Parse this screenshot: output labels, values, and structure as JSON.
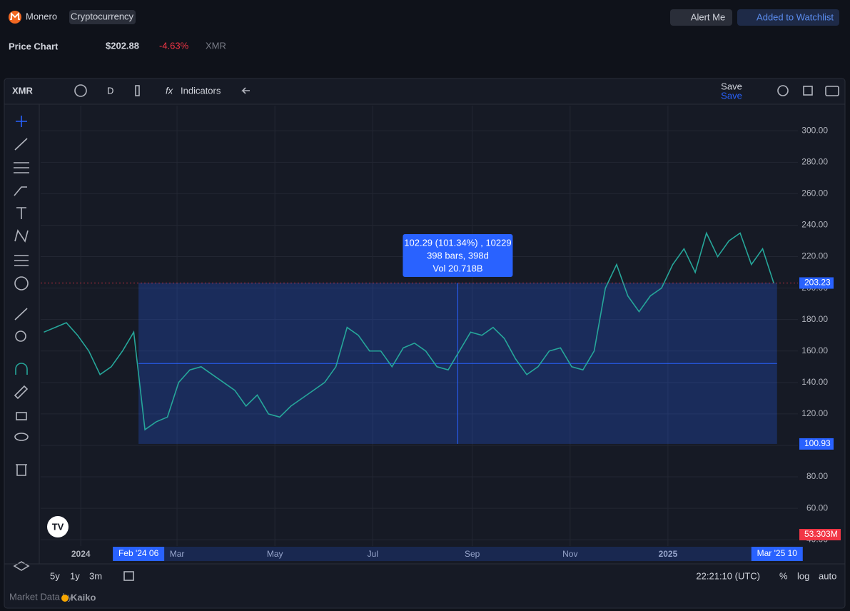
{
  "header": {
    "brand": "Monero",
    "badge": "Cryptocurrency",
    "alert": "Alert Me",
    "watchlist": "Added to Watchlist",
    "title": "Price Chart",
    "price": "$202.88",
    "change": "-4.63%",
    "symbol": "XMR"
  },
  "toolbar": {
    "symbol": "XMR",
    "interval": "D",
    "indicators": "Indicators",
    "save": "Save",
    "save_sub": "Save"
  },
  "chart_data": {
    "type": "line",
    "x": [
      "2023-12-09",
      "2023-12-16",
      "2023-12-23",
      "2023-12-30",
      "2024-01-06",
      "2024-01-13",
      "2024-01-20",
      "2024-01-27",
      "2024-02-03",
      "2024-02-10",
      "2024-02-17",
      "2024-02-24",
      "2024-03-02",
      "2024-03-09",
      "2024-03-16",
      "2024-03-23",
      "2024-03-30",
      "2024-04-06",
      "2024-04-13",
      "2024-04-20",
      "2024-04-27",
      "2024-05-04",
      "2024-05-11",
      "2024-05-18",
      "2024-05-25",
      "2024-06-01",
      "2024-06-08",
      "2024-06-15",
      "2024-06-22",
      "2024-06-29",
      "2024-07-06",
      "2024-07-13",
      "2024-07-20",
      "2024-07-27",
      "2024-08-03",
      "2024-08-10",
      "2024-08-17",
      "2024-08-24",
      "2024-08-31",
      "2024-09-07",
      "2024-09-14",
      "2024-09-21",
      "2024-09-28",
      "2024-10-05",
      "2024-10-12",
      "2024-10-19",
      "2024-10-26",
      "2024-11-02",
      "2024-11-09",
      "2024-11-16",
      "2024-11-23",
      "2024-11-30",
      "2024-12-07",
      "2024-12-14",
      "2024-12-21",
      "2024-12-28",
      "2025-01-04",
      "2025-01-11",
      "2025-01-18",
      "2025-01-25",
      "2025-02-01",
      "2025-02-08",
      "2025-02-15",
      "2025-02-22",
      "2025-03-01",
      "2025-03-08"
    ],
    "values": [
      172,
      175,
      178,
      170,
      160,
      145,
      150,
      160,
      172,
      110,
      115,
      118,
      140,
      148,
      150,
      145,
      140,
      135,
      125,
      132,
      120,
      118,
      125,
      130,
      135,
      140,
      150,
      175,
      170,
      160,
      160,
      150,
      162,
      165,
      160,
      150,
      148,
      160,
      172,
      170,
      175,
      168,
      155,
      145,
      150,
      160,
      162,
      150,
      148,
      160,
      200,
      215,
      195,
      185,
      195,
      200,
      215,
      225,
      210,
      235,
      220,
      230,
      235,
      215,
      225,
      203
    ],
    "color": "#26a69a",
    "xlim": [
      "2023-12-07",
      "2025-03-23"
    ],
    "xticks": [
      {
        "value": "2024-01-01",
        "label": "2024"
      },
      {
        "value": "2024-03-01",
        "label": "Mar"
      },
      {
        "value": "2024-05-01",
        "label": "May"
      },
      {
        "value": "2024-07-01",
        "label": "Jul"
      },
      {
        "value": "2024-09-01",
        "label": "Sep"
      },
      {
        "value": "2024-11-01",
        "label": "Nov"
      },
      {
        "value": "2025-01-01",
        "label": "2025"
      }
    ],
    "ylim": [
      36,
      316
    ],
    "yticks": [
      {
        "value": 40,
        "label": "40.00"
      },
      {
        "value": 60,
        "label": "60.00"
      },
      {
        "value": 80,
        "label": "80.00"
      },
      {
        "value": 100,
        "label": "100.00"
      },
      {
        "value": 120,
        "label": "120.00"
      },
      {
        "value": 140,
        "label": "140.00"
      },
      {
        "value": 160,
        "label": "160.00"
      },
      {
        "value": 180,
        "label": "180.00"
      },
      {
        "value": 200,
        "label": "200.00"
      },
      {
        "value": 220,
        "label": "220.00"
      },
      {
        "value": 240,
        "label": "240.00"
      },
      {
        "value": 260,
        "label": "260.00"
      },
      {
        "value": 280,
        "label": "280.00"
      },
      {
        "value": 300,
        "label": "300.00"
      }
    ],
    "grid": true,
    "measure": {
      "top": {
        "value": 203.23,
        "label": "203.23"
      },
      "bottom": {
        "value": 100.93,
        "label": "100.93"
      },
      "start": {
        "value": "2024-02-06",
        "label": "Feb '24 06"
      },
      "end": {
        "value": "2025-03-10",
        "label": "Mar '25 10"
      },
      "info": [
        "102.29 (101.34%) , 10229",
        "398 bars, 398d",
        "Vol 20.718B"
      ]
    },
    "volume_label": "53.303M"
  },
  "footer": {
    "ranges": [
      "5y",
      "1y",
      "3m"
    ],
    "clock": "22:21:10 (UTC)",
    "percent": "%",
    "log": "log",
    "auto": "auto",
    "credit": "Market Data by",
    "provider": "Kaiko"
  }
}
